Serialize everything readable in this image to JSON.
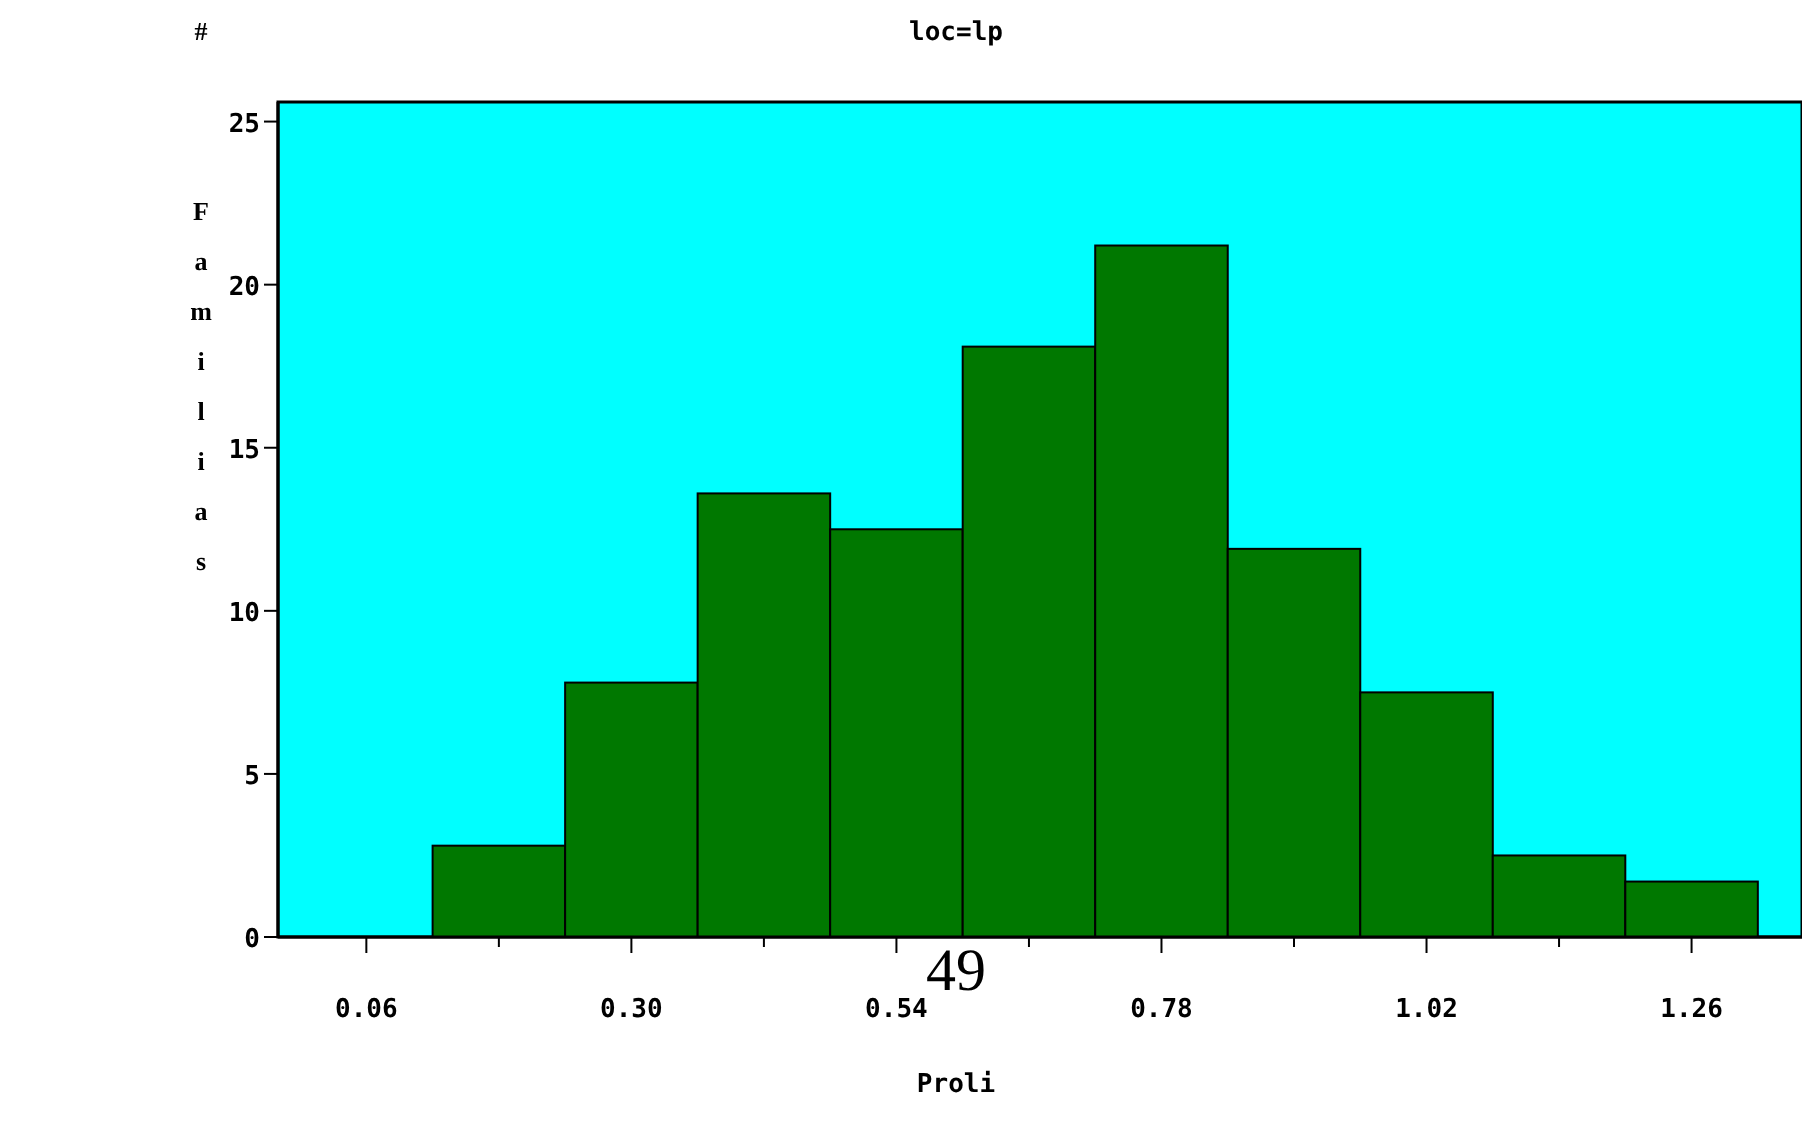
{
  "chart_data": {
    "type": "histogram",
    "title": "loc=lp",
    "xlabel": "Proli",
    "ylabel": "# Familias",
    "bins": [
      0.12,
      0.24,
      0.36,
      0.48,
      0.6,
      0.72,
      0.84,
      0.96,
      1.08,
      1.2,
      1.32
    ],
    "values": [
      2.8,
      7.8,
      13.6,
      12.5,
      18.1,
      21.2,
      11.9,
      7.5,
      2.5,
      1.7
    ],
    "color": "#007800",
    "xlim": [
      -0.02,
      1.36
    ],
    "xticks": [
      0.06,
      {
        "value": 0.18,
        "label": null
      },
      "0.30",
      {
        "value": 0.42,
        "label": null
      },
      0.54,
      {
        "value": 0.66,
        "label": null
      },
      0.78,
      {
        "value": 0.9,
        "label": null
      },
      1.02,
      {
        "value": 1.14,
        "label": null
      },
      1.26
    ],
    "ylim": [
      0,
      25.6
    ],
    "yticks": [
      0,
      5,
      10,
      15,
      20,
      25
    ],
    "annotations": [
      "49"
    ]
  }
}
